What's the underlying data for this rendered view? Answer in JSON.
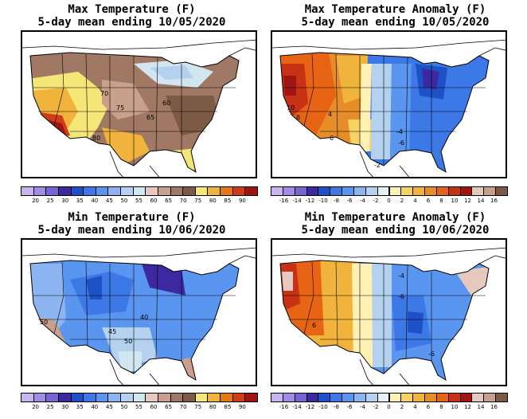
{
  "panels": [
    {
      "id": "max-temp",
      "title_line1": "Max Temperature (F)",
      "title_line2": "5-day mean ending 10/05/2020",
      "contour_labels": [
        "70",
        "75",
        "60",
        "65",
        "80"
      ],
      "legend": {
        "colors": [
          "#c8b4f0",
          "#a08ce6",
          "#7864d2",
          "#3c28a0",
          "#1e50c8",
          "#3c78e6",
          "#5a96f0",
          "#8cb4f0",
          "#b4d2f0",
          "#d2e6f0",
          "#e6c8be",
          "#c8a08c",
          "#a07864",
          "#7d5a46",
          "#f5e678",
          "#f0b43c",
          "#e67814",
          "#d23c14",
          "#a01414"
        ],
        "ticks": [
          "20",
          "25",
          "30",
          "35",
          "40",
          "45",
          "50",
          "55",
          "60",
          "65",
          "70",
          "75",
          "80",
          "85",
          "90"
        ]
      }
    },
    {
      "id": "max-temp-anomaly",
      "title_line1": "Max Temperature Anomaly (F)",
      "title_line2": "5-day mean ending 10/05/2020",
      "contour_labels": [
        "10",
        "8",
        "4",
        "6",
        "-4",
        "-6",
        "-2"
      ],
      "legend": {
        "colors": [
          "#c8b4f0",
          "#a08ce6",
          "#7864d2",
          "#3c28a0",
          "#1e50c8",
          "#3c78e6",
          "#5a96f0",
          "#8cb4f0",
          "#b4d2f0",
          "#e6f0f5",
          "#fff0b4",
          "#f5d264",
          "#f0b43c",
          "#e68c28",
          "#e66414",
          "#c83214",
          "#a01414",
          "#e6c8be",
          "#c8a08c",
          "#7d5a46"
        ],
        "ticks": [
          "-16",
          "-14",
          "-12",
          "-10",
          "-8",
          "-6",
          "-4",
          "-2",
          "0",
          "2",
          "4",
          "6",
          "8",
          "10",
          "12",
          "14",
          "16"
        ]
      }
    },
    {
      "id": "min-temp",
      "title_line1": "Min Temperature (F)",
      "title_line2": "5-day mean ending 10/06/2020",
      "contour_labels": [
        "40",
        "45",
        "50",
        "50"
      ],
      "legend": {
        "colors": [
          "#c8b4f0",
          "#a08ce6",
          "#7864d2",
          "#3c28a0",
          "#1e50c8",
          "#3c78e6",
          "#5a96f0",
          "#8cb4f0",
          "#b4d2f0",
          "#d2e6f0",
          "#e6c8be",
          "#c8a08c",
          "#a07864",
          "#7d5a46",
          "#f5e678",
          "#f0b43c",
          "#e67814",
          "#d23c14",
          "#a01414"
        ],
        "ticks": [
          "20",
          "25",
          "30",
          "35",
          "40",
          "45",
          "50",
          "55",
          "60",
          "65",
          "70",
          "75",
          "80",
          "85",
          "90"
        ]
      }
    },
    {
      "id": "min-temp-anomaly",
      "title_line1": "Min Temperature Anomaly (F)",
      "title_line2": "5-day mean ending 10/06/2020",
      "contour_labels": [
        "-4",
        "-6",
        "6",
        "-6"
      ],
      "legend": {
        "colors": [
          "#c8b4f0",
          "#a08ce6",
          "#7864d2",
          "#3c28a0",
          "#1e50c8",
          "#3c78e6",
          "#5a96f0",
          "#8cb4f0",
          "#b4d2f0",
          "#e6f0f5",
          "#fff0b4",
          "#f5d264",
          "#f0b43c",
          "#e68c28",
          "#e66414",
          "#c83214",
          "#a01414",
          "#e6c8be",
          "#c8a08c",
          "#7d5a46"
        ],
        "ticks": [
          "-16",
          "-14",
          "-12",
          "-10",
          "-8",
          "-6",
          "-4",
          "-2",
          "0",
          "2",
          "4",
          "6",
          "8",
          "10",
          "12",
          "14",
          "16"
        ]
      }
    }
  ]
}
